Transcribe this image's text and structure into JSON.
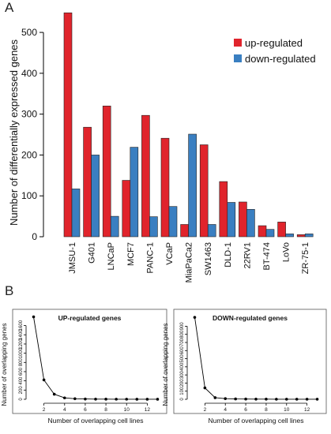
{
  "panels": {
    "a_letter": "A",
    "b_letter": "B"
  },
  "colors": {
    "up": "#e0242c",
    "down": "#3a7fc1",
    "line": "#000000"
  },
  "chart_data": [
    {
      "type": "bar",
      "title": "",
      "xlabel": "",
      "ylabel": "Number of differentially expressed genes",
      "ylim": [
        0,
        560
      ],
      "yticks": [
        0,
        100,
        200,
        300,
        400,
        500
      ],
      "legend_placement": "top-right",
      "categories": [
        "JMSU-1",
        "G401",
        "LNCaP",
        "MCF7",
        "PANC-1",
        "VCaP",
        "MiaPaCa2",
        "SW1463",
        "DLD-1",
        "22RV1",
        "BT-474",
        "LoVo",
        "ZR-75-1"
      ],
      "series": [
        {
          "name": "up-regulated",
          "values": [
            548,
            268,
            320,
            138,
            297,
            241,
            30,
            225,
            135,
            85,
            27,
            36,
            5
          ]
        },
        {
          "name": "down-regulated",
          "values": [
            117,
            200,
            50,
            219,
            49,
            74,
            251,
            30,
            84,
            67,
            18,
            7,
            7
          ]
        }
      ]
    },
    {
      "type": "line",
      "title": "UP-regulated genes",
      "xlabel": "Number of overlapping cell lines",
      "ylabel": "Number of overlapping genes",
      "xlim": [
        0.5,
        13.5
      ],
      "ylim": [
        0,
        1850
      ],
      "xticks": [
        2,
        4,
        6,
        8,
        10,
        12
      ],
      "yticks": [
        0,
        200,
        400,
        600,
        800,
        1000,
        1200,
        1400,
        1600
      ],
      "grid": false,
      "x": [
        1,
        2,
        3,
        4,
        5,
        6,
        7,
        8,
        9,
        10,
        11,
        12,
        13
      ],
      "y": [
        1790,
        420,
        110,
        30,
        12,
        6,
        4,
        3,
        2,
        2,
        1,
        1,
        1
      ]
    },
    {
      "type": "line",
      "title": "DOWN-regulated genes",
      "xlabel": "Number of overlapping cell lines",
      "ylabel": "Number of overlapping genes",
      "xlim": [
        0.5,
        13.5
      ],
      "ylim": [
        0,
        1050
      ],
      "xticks": [
        2,
        4,
        6,
        8,
        10,
        12
      ],
      "yticks": [
        0,
        100,
        200,
        300,
        400,
        500,
        600,
        700,
        800,
        900
      ],
      "grid": false,
      "x": [
        1,
        2,
        3,
        4,
        5,
        6,
        7,
        8,
        9,
        10,
        11,
        12,
        13
      ],
      "y": [
        1010,
        140,
        20,
        8,
        4,
        3,
        2,
        2,
        1,
        1,
        1,
        1,
        1
      ]
    }
  ]
}
